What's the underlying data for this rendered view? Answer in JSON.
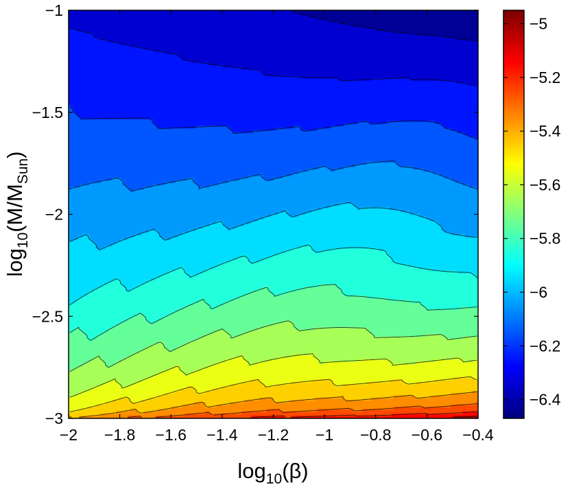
{
  "chart_data": {
    "type": "heatmap",
    "subtype": "filled-contour",
    "title": "",
    "xlabel": {
      "text": "log",
      "sub": "10",
      "rest": "(β)"
    },
    "ylabel": {
      "text": "log",
      "sub1": "10",
      "mid": "(M/M",
      "sub2": "Sun",
      "rest": ")"
    },
    "xlim": [
      -2,
      -0.4
    ],
    "ylim": [
      -3,
      -1
    ],
    "x_ticks": [
      -2,
      -1.8,
      -1.6,
      -1.4,
      -1.2,
      -1,
      -0.8,
      -0.6,
      -0.4
    ],
    "x_tick_labels": [
      "−2",
      "−1.8",
      "−1.6",
      "−1.4",
      "−1.2",
      "−1",
      "−0.8",
      "−0.6",
      "−0.4"
    ],
    "y_ticks": [
      -1,
      -1.5,
      -2,
      -2.5,
      -3
    ],
    "y_tick_labels": [
      "−1",
      "−1.5",
      "−2",
      "−2.5",
      "−3"
    ],
    "colorbar": {
      "range": [
        -6.47,
        -4.95
      ],
      "ticks": [
        -5,
        -5.2,
        -5.4,
        -5.6,
        -5.8,
        -6,
        -6.2,
        -6.4
      ],
      "tick_labels": [
        "−5",
        "−5.2",
        "−5.4",
        "−5.6",
        "−5.8",
        "−6",
        "−6.2",
        "−6.4"
      ],
      "colormap": "jet"
    },
    "contour_levels": [
      -6.4,
      -6.3,
      -6.2,
      -6.1,
      -6.0,
      -5.9,
      -5.8,
      -5.7,
      -5.6,
      -5.5,
      -5.4,
      -5.3,
      -5.2,
      -5.1
    ],
    "grid": false,
    "legend": "none",
    "field_samples": {
      "description_of_corners": "value range of the plotted quantity at plot corners, in colorbar units",
      "corner_values": {
        "top_left": -6.32,
        "top_right": -6.47,
        "bottom_left": -5.32,
        "bottom_right": -4.97
      }
    }
  }
}
